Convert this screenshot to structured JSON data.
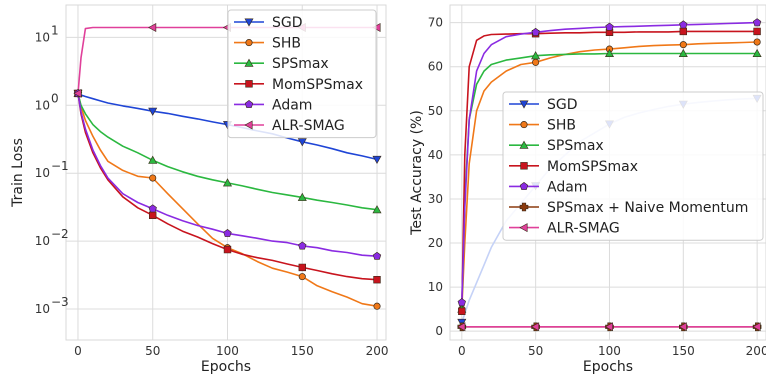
{
  "chart_data": [
    {
      "type": "line",
      "ylabel": "Train Loss",
      "xlabel": "Epochs",
      "yscale": "log",
      "xlim": [
        -8,
        206
      ],
      "ylim": [
        0.00035,
        30
      ],
      "x_ticks": [
        0,
        50,
        100,
        150,
        200
      ],
      "y_ticks": [
        0.001,
        0.01,
        0.1,
        1,
        10
      ],
      "y_tick_labels": [
        [
          "10",
          "−3"
        ],
        [
          "10",
          "−2"
        ],
        [
          "10",
          "−1"
        ],
        [
          "10",
          "0"
        ],
        [
          "10",
          "1"
        ]
      ],
      "legend_position": "top-right",
      "grid": true,
      "x": [
        0,
        2,
        5,
        10,
        15,
        20,
        30,
        40,
        50,
        60,
        70,
        80,
        90,
        100,
        110,
        120,
        130,
        140,
        150,
        160,
        170,
        180,
        190,
        200
      ],
      "series": [
        {
          "name": "SGD",
          "color": "#1f45d6",
          "marker": "triangle-down",
          "values": [
            1.5,
            1.42,
            1.35,
            1.25,
            1.16,
            1.08,
            0.98,
            0.9,
            0.82,
            0.76,
            0.69,
            0.63,
            0.57,
            0.52,
            0.47,
            0.42,
            0.38,
            0.33,
            0.29,
            0.26,
            0.23,
            0.2,
            0.18,
            0.16
          ]
        },
        {
          "name": "SHB",
          "color": "#f07818",
          "marker": "circle",
          "values": [
            1.5,
            0.95,
            0.6,
            0.35,
            0.22,
            0.15,
            0.11,
            0.09,
            0.085,
            0.05,
            0.03,
            0.018,
            0.011,
            0.008,
            0.0065,
            0.005,
            0.004,
            0.0035,
            0.003,
            0.0022,
            0.0018,
            0.0015,
            0.0012,
            0.0011
          ]
        },
        {
          "name": "SPSmax",
          "color": "#2bb840",
          "marker": "triangle-up",
          "values": [
            1.5,
            1.0,
            0.75,
            0.52,
            0.41,
            0.34,
            0.25,
            0.2,
            0.155,
            0.125,
            0.105,
            0.09,
            0.08,
            0.072,
            0.065,
            0.058,
            0.052,
            0.048,
            0.044,
            0.04,
            0.037,
            0.034,
            0.031,
            0.029
          ]
        },
        {
          "name": "MomSPSmax",
          "color": "#c8141e",
          "marker": "square",
          "values": [
            1.5,
            0.75,
            0.4,
            0.2,
            0.12,
            0.08,
            0.045,
            0.031,
            0.024,
            0.018,
            0.014,
            0.0115,
            0.0092,
            0.0075,
            0.0064,
            0.0057,
            0.0052,
            0.0046,
            0.0041,
            0.0037,
            0.0033,
            0.003,
            0.0028,
            0.0027
          ]
        },
        {
          "name": "Adam",
          "color": "#8a2be2",
          "marker": "pentagon",
          "values": [
            1.5,
            0.8,
            0.45,
            0.22,
            0.13,
            0.085,
            0.05,
            0.037,
            0.03,
            0.024,
            0.02,
            0.017,
            0.015,
            0.013,
            0.012,
            0.011,
            0.01,
            0.0095,
            0.0085,
            0.008,
            0.0072,
            0.0068,
            0.0062,
            0.006
          ]
        },
        {
          "name": "ALR-SMAG",
          "color": "#e0409a",
          "marker": "triangle-left",
          "values": [
            1.5,
            5.0,
            13.5,
            14.0,
            14.0,
            14.0,
            14.0,
            14.0,
            14.0,
            14.0,
            14.0,
            14.0,
            14.0,
            14.0,
            14.0,
            14.0,
            14.0,
            14.0,
            14.0,
            14.0,
            14.0,
            14.0,
            14.0,
            14.0
          ]
        }
      ]
    },
    {
      "type": "line",
      "ylabel": "Test Accuracy  (%)",
      "xlabel": "Epochs",
      "xlim": [
        -8,
        206
      ],
      "ylim": [
        -2,
        74
      ],
      "x_ticks": [
        0,
        50,
        100,
        150,
        200
      ],
      "x_tick_labels": [
        "0",
        "50",
        "100",
        "150",
        "200"
      ],
      "y_ticks": [
        0,
        10,
        20,
        30,
        40,
        50,
        60,
        70
      ],
      "legend_position": "center-right",
      "grid": true,
      "x": [
        0,
        2,
        5,
        10,
        15,
        20,
        30,
        40,
        50,
        60,
        70,
        80,
        90,
        100,
        110,
        120,
        130,
        140,
        150,
        160,
        170,
        180,
        190,
        200
      ],
      "series": [
        {
          "name": "SGD",
          "color": "#1f45d6",
          "light_color": "#c5d2f7",
          "marker": "triangle-down",
          "values": [
            2,
            4,
            7,
            11,
            15,
            19,
            25,
            29,
            33,
            37,
            40,
            43,
            45,
            47,
            48.5,
            49.5,
            50.3,
            51,
            51.5,
            51.9,
            52.2,
            52.5,
            52.7,
            52.8
          ]
        },
        {
          "name": "SHB",
          "color": "#f07818",
          "marker": "circle",
          "values": [
            5,
            20,
            38,
            50,
            54.5,
            56.5,
            59,
            60.5,
            61,
            62,
            62.8,
            63.4,
            63.8,
            64,
            64.3,
            64.6,
            64.8,
            64.9,
            65,
            65.2,
            65.3,
            65.4,
            65.5,
            65.6
          ]
        },
        {
          "name": "SPSmax",
          "color": "#2bb840",
          "marker": "triangle-up",
          "values": [
            5,
            30,
            48,
            56,
            59,
            60.5,
            61.5,
            62,
            62.5,
            62.7,
            62.8,
            62.9,
            62.9,
            63,
            63,
            63,
            63,
            63,
            63,
            63,
            63,
            63,
            63,
            63
          ]
        },
        {
          "name": "MomSPSmax",
          "color": "#c8141e",
          "marker": "square",
          "values": [
            4.5,
            40,
            60,
            66,
            67,
            67.3,
            67.4,
            67.5,
            67.5,
            67.6,
            67.7,
            67.7,
            67.8,
            67.8,
            67.8,
            67.9,
            67.9,
            67.9,
            68,
            68,
            68,
            68,
            68,
            68
          ]
        },
        {
          "name": "Adam",
          "color": "#8a2be2",
          "marker": "pentagon",
          "values": [
            6.5,
            28,
            48,
            59,
            63,
            65,
            66.8,
            67.4,
            67.8,
            68.2,
            68.5,
            68.7,
            68.9,
            69,
            69.1,
            69.2,
            69.3,
            69.4,
            69.5,
            69.6,
            69.7,
            69.8,
            69.9,
            70
          ]
        },
        {
          "name": "SPSmax + Naive Momentum",
          "color": "#8b3a0e",
          "marker": "plus",
          "values": [
            1,
            1,
            1,
            1,
            1,
            1,
            1,
            1,
            1,
            1,
            1,
            1,
            1,
            1,
            1,
            1,
            1,
            1,
            1,
            1,
            1,
            1,
            1,
            1
          ]
        },
        {
          "name": "ALR-SMAG",
          "color": "#e0409a",
          "marker": "triangle-left",
          "values": [
            1,
            1,
            1,
            1,
            1,
            1,
            1,
            1,
            1,
            1,
            1,
            1,
            1,
            1,
            1,
            1,
            1,
            1,
            1,
            1,
            1,
            1,
            1,
            1
          ]
        }
      ]
    }
  ]
}
